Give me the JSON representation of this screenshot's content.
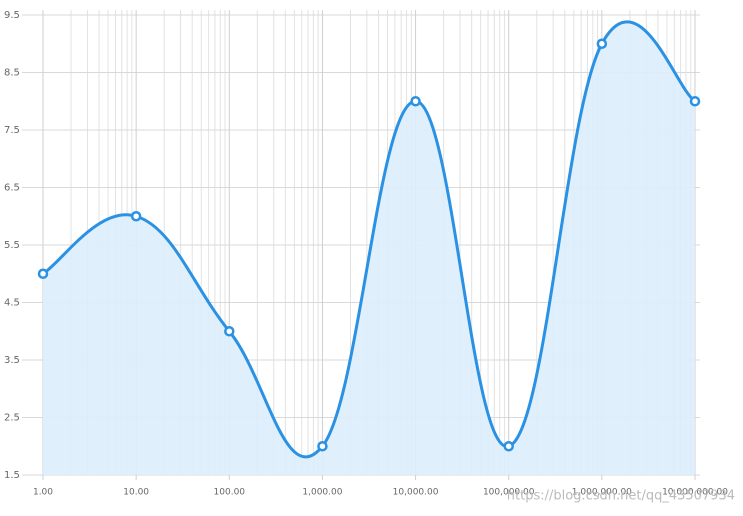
{
  "chart_data": {
    "type": "area-spline",
    "x": [
      1,
      10,
      100,
      1000,
      10000,
      100000,
      1000000,
      10000000
    ],
    "values": [
      5,
      6,
      4,
      2,
      8,
      2,
      9,
      8
    ],
    "color": "#2b91e3",
    "fill_color": "#dcedfc",
    "xscale": "log",
    "xlim": [
      1,
      10000000
    ],
    "xticks": [
      {
        "value": 1,
        "label": "1.00"
      },
      {
        "value": 10,
        "label": "10.00"
      },
      {
        "value": 100,
        "label": "100.00"
      },
      {
        "value": 1000,
        "label": "1,000.00"
      },
      {
        "value": 10000,
        "label": "10,000.00"
      },
      {
        "value": 100000,
        "label": "100,000.00"
      },
      {
        "value": 1000000,
        "label": "1,000,000.00"
      },
      {
        "value": 10000000,
        "label": "10,000,000.00"
      }
    ],
    "ylim": [
      1.5,
      9.5
    ],
    "yticks": [
      1.5,
      2.5,
      3.5,
      4.5,
      5.5,
      6.5,
      7.5,
      8.5,
      9.5
    ],
    "grid": true,
    "minor_grid": true,
    "watermark": "https://blog.csdn.net/qq_43507934"
  }
}
